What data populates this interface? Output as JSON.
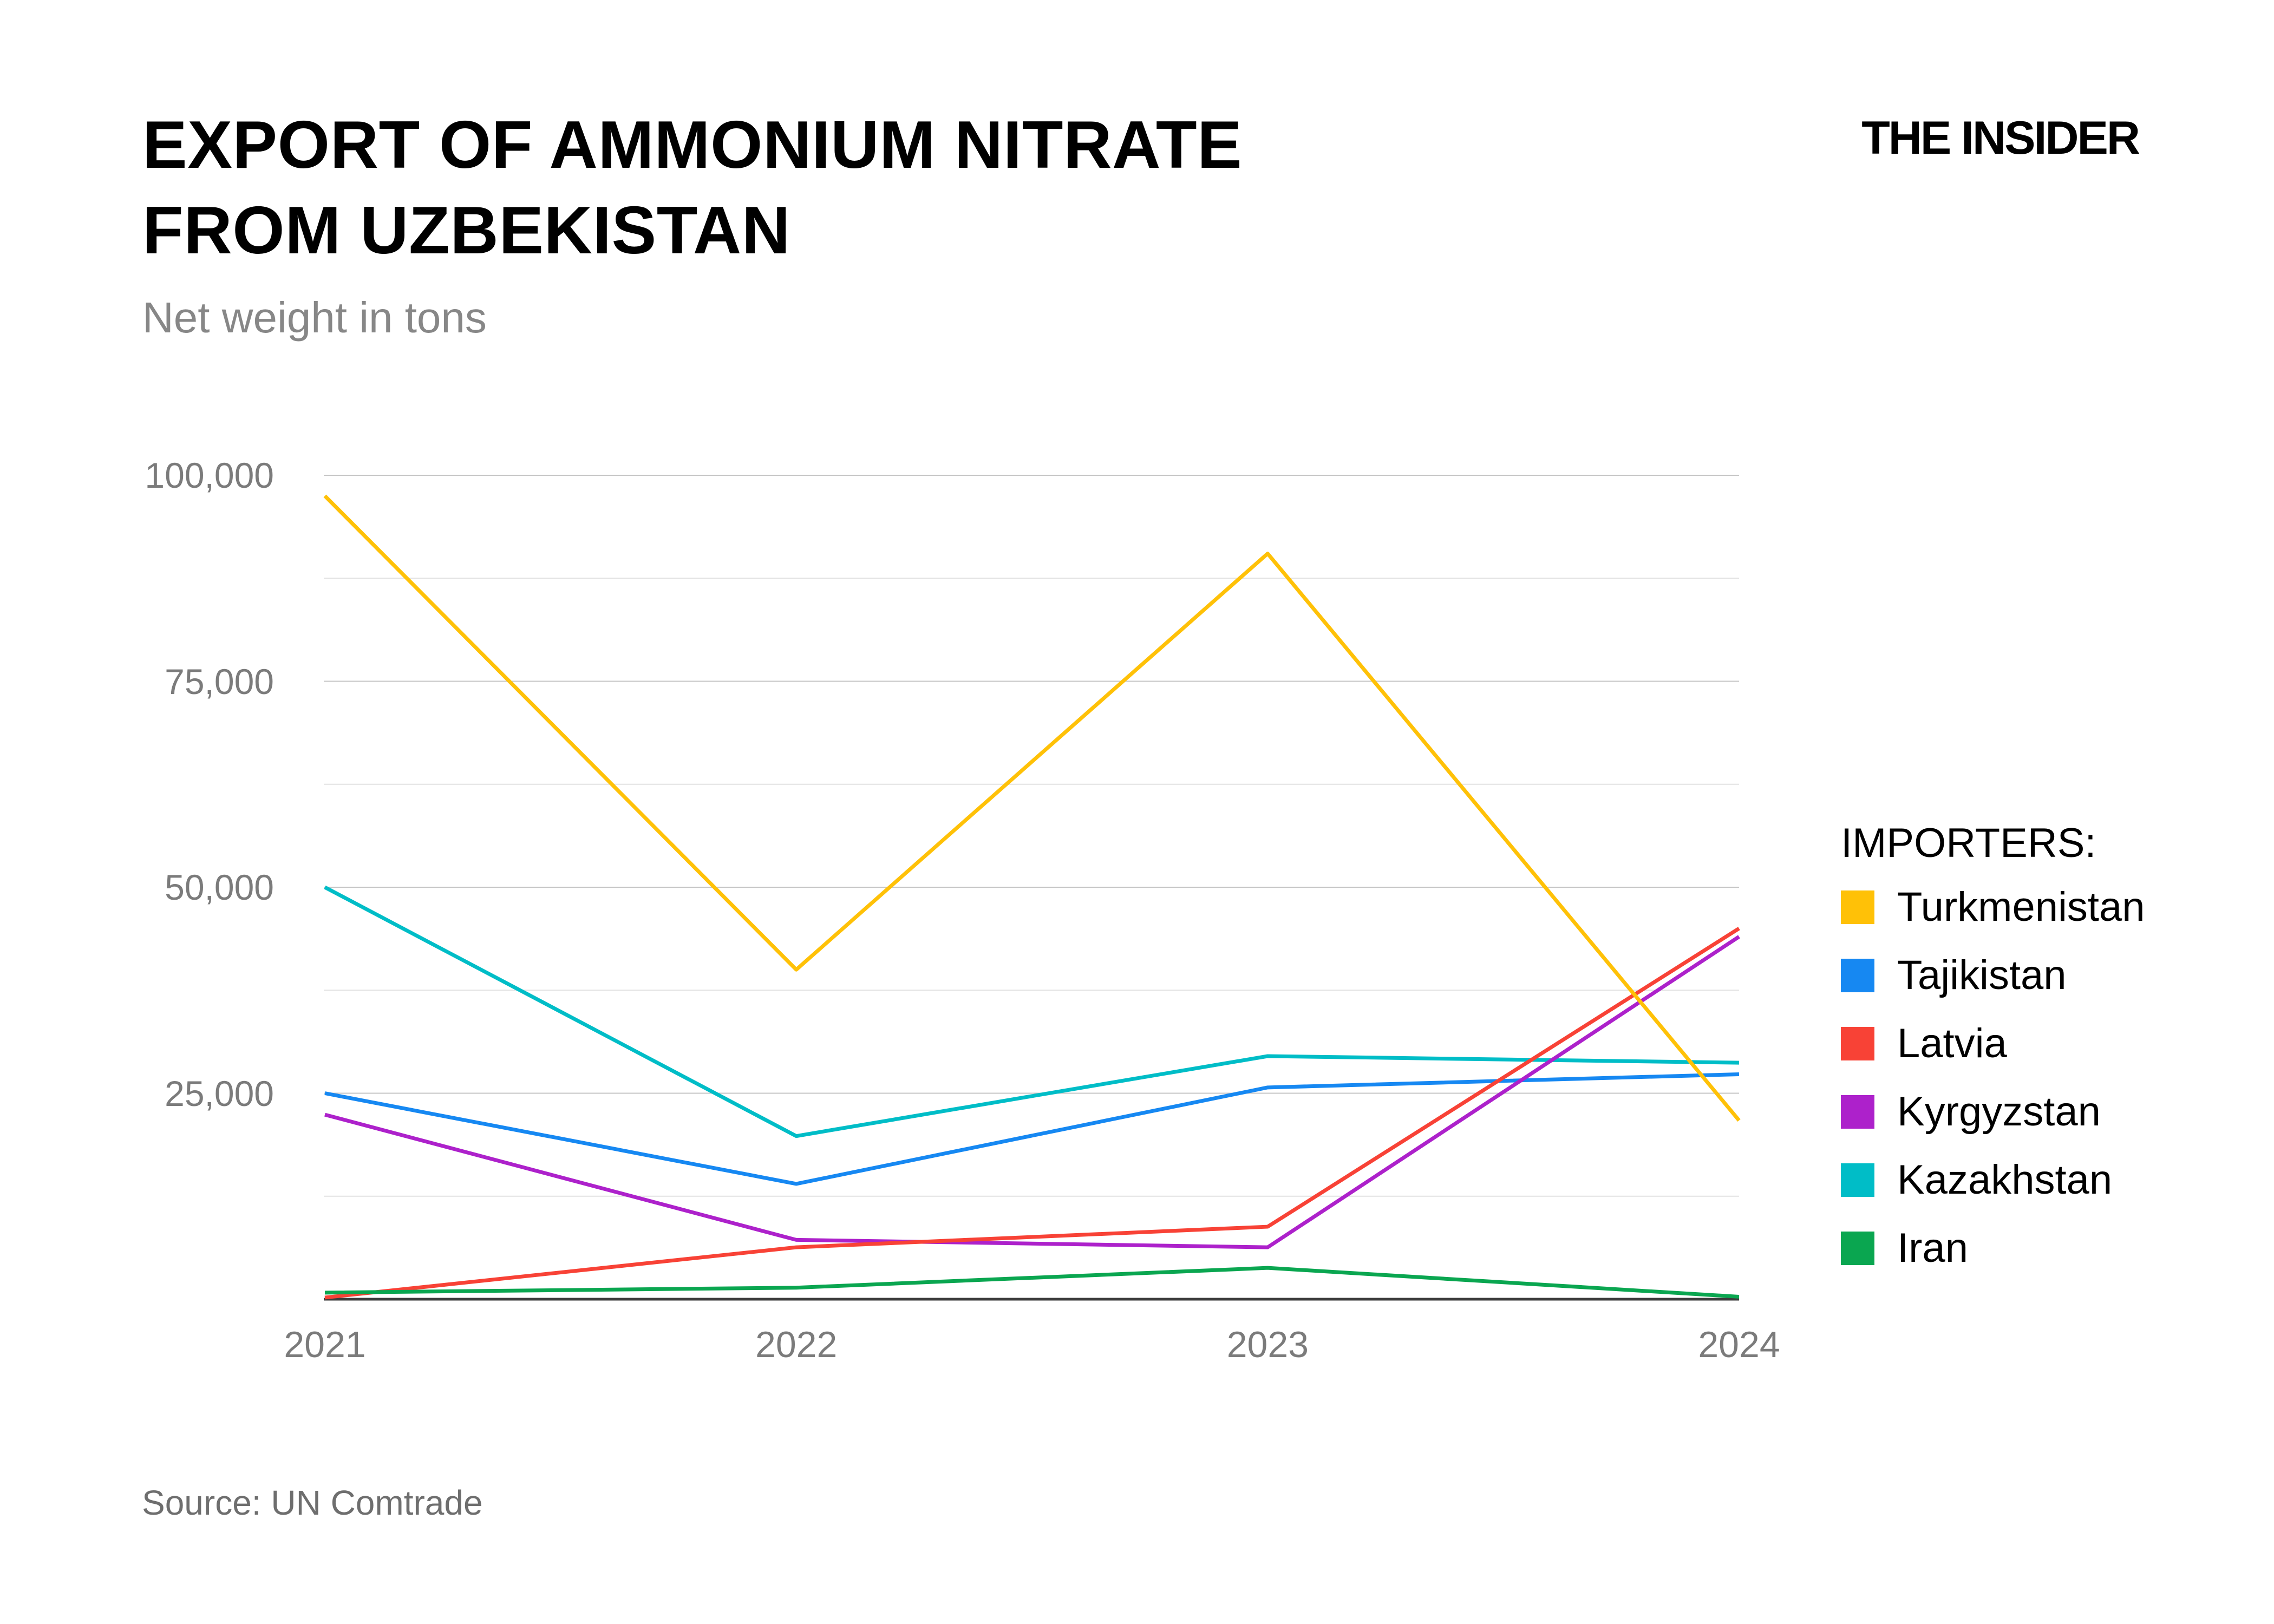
{
  "meta": {
    "publication": "THE INSIDER"
  },
  "header": {
    "title_line1": "EXPORT OF AMMONIUM NITRATE",
    "title_line2": "FROM UZBEKISTAN",
    "subtitle": "Net weight in tons"
  },
  "legend": {
    "title": "IMPORTERS:"
  },
  "source": {
    "label": "Source: UN Comtrade"
  },
  "chart_data": {
    "type": "line",
    "title": "EXPORT OF AMMONIUM NITRATE FROM UZBEKISTAN",
    "subtitle": "Net weight in tons",
    "xlabel": "",
    "ylabel": "Net weight in tons",
    "x_labels": [
      "2021",
      "2022",
      "2023",
      "2024"
    ],
    "ylim": [
      0,
      100000
    ],
    "grid": "on",
    "legend_position": "right",
    "y_ticks": [
      {
        "value": 100000,
        "label": "100,000"
      },
      {
        "value": 75000,
        "label": "75,000"
      },
      {
        "value": 50000,
        "label": "50,000"
      },
      {
        "value": 25000,
        "label": "25,000"
      }
    ],
    "y_minor_gridlines": [
      87500,
      62500,
      37500,
      12500
    ],
    "series": [
      {
        "name": "Turkmenistan",
        "color": "#ffc107",
        "values": [
          97500,
          40000,
          90500,
          21700
        ]
      },
      {
        "name": "Tajikistan",
        "color": "#1688f2",
        "values": [
          25000,
          14000,
          25700,
          27300
        ]
      },
      {
        "name": "Latvia",
        "color": "#f84236",
        "values": [
          200,
          6300,
          8800,
          45000
        ]
      },
      {
        "name": "Kyrgyzstan",
        "color": "#ad21cb",
        "values": [
          22400,
          7200,
          6300,
          44000
        ]
      },
      {
        "name": "Kazakhstan",
        "color": "#00bdc7",
        "values": [
          50000,
          19800,
          29500,
          28700
        ]
      },
      {
        "name": "Iran",
        "color": "#0aa650",
        "values": [
          800,
          1400,
          3800,
          300
        ]
      }
    ],
    "z_order": [
      "Kazakhstan",
      "Tajikistan",
      "Kyrgyzstan",
      "Latvia",
      "Turkmenistan",
      "Iran"
    ]
  },
  "colors": {
    "background": "#ffffff",
    "title": "#000000",
    "subtitle": "#878787",
    "axis_label": "#7b7b7b",
    "source": "#6e6e6e",
    "grid_major": "#c6c6c6",
    "grid_minor": "#e2e2e2",
    "axis_line": "#3c3c3c"
  }
}
